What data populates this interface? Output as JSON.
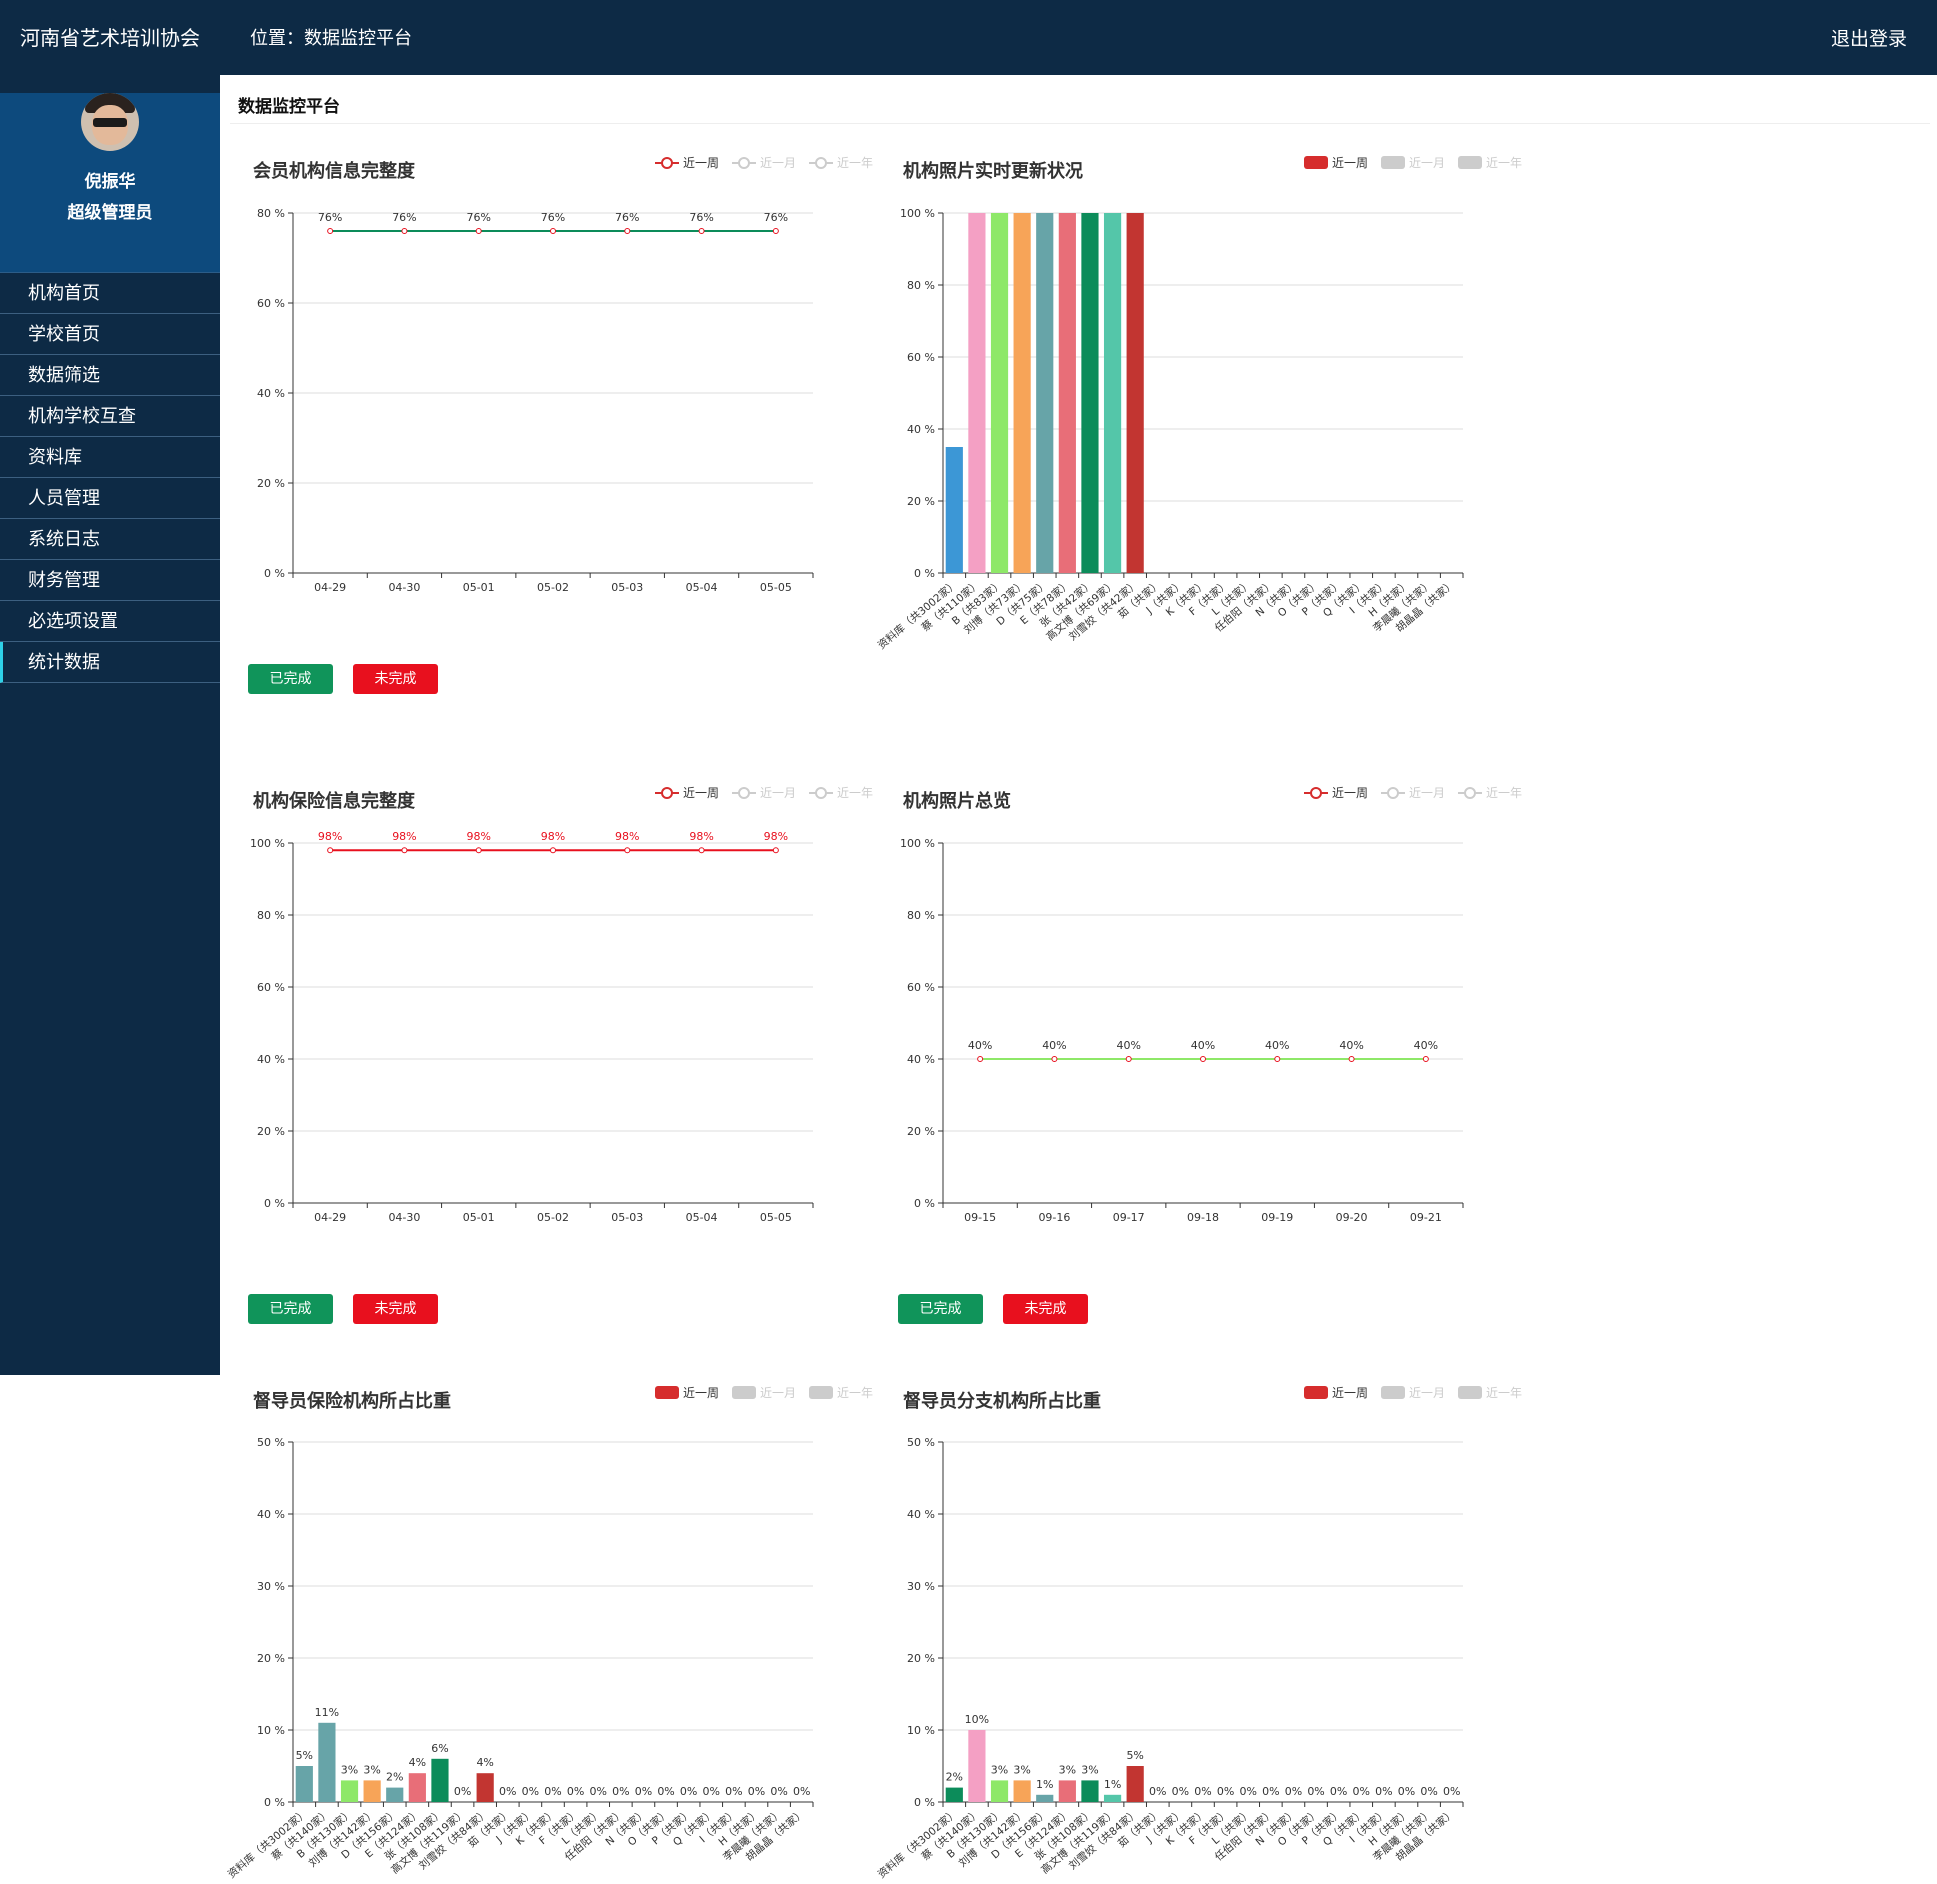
{
  "header": {
    "org_name": "河南省艺术培训协会",
    "location": "位置：数据监控平台",
    "logout": "退出登录"
  },
  "user": {
    "name": "倪振华",
    "role": "超级管理员"
  },
  "sidebar": {
    "items": [
      {
        "label": "机构首页"
      },
      {
        "label": "学校首页"
      },
      {
        "label": "数据筛选"
      },
      {
        "label": "机构学校互查"
      },
      {
        "label": "资料库"
      },
      {
        "label": "人员管理"
      },
      {
        "label": "系统日志"
      },
      {
        "label": "财务管理"
      },
      {
        "label": "必选项设置"
      },
      {
        "label": "统计数据"
      }
    ],
    "active_index": 9
  },
  "page": {
    "title": "数据监控平台"
  },
  "legend": {
    "labels": [
      "近一周",
      "近一月",
      "近一年"
    ],
    "active_color": "#d62d2d",
    "inactive_color": "#cccccc"
  },
  "buttons": {
    "done": "已完成",
    "undone": "未完成"
  },
  "colors": {
    "done": "#10945a",
    "undone": "#e8101e"
  },
  "palette": [
    "#3c97d6",
    "#f4a0c4",
    "#8ee868",
    "#f7a458",
    "#67a4a8",
    "#e86e78",
    "#0c8c5a",
    "#54c6a9",
    "#c23531"
  ],
  "chart_data": [
    {
      "id": "member-info",
      "type": "line",
      "title": "会员机构信息完整度",
      "legend_style": "line",
      "categories": [
        "04-29",
        "04-30",
        "05-01",
        "05-02",
        "05-03",
        "05-04",
        "05-05"
      ],
      "values": [
        76,
        76,
        76,
        76,
        76,
        76,
        76
      ],
      "value_labels": [
        "76%",
        "76%",
        "76%",
        "76%",
        "76%",
        "76%",
        "76%"
      ],
      "yticks": [
        "0 %",
        "20 %",
        "40 %",
        "60 %",
        "80 %"
      ],
      "ylim": [
        0,
        80
      ],
      "line_color": "#0c8c5a",
      "label_color": "#333333"
    },
    {
      "id": "photo-update",
      "type": "bar",
      "title": "机构照片实时更新状况",
      "legend_style": "rect",
      "categories": [
        "资料库（共3002家）",
        "蔡（共110家）",
        "B（共83家）",
        "刘博（共73家）",
        "D（共75家）",
        "E（共78家）",
        "张（共42家）",
        "高文博（共69家）",
        "刘雪姣（共42家）",
        "茹（共家）",
        "J（共家）",
        "K（共家）",
        "F（共家）",
        "L（共家）",
        "任伯阳（共家）",
        "N（共家）",
        "O（共家）",
        "P（共家）",
        "Q（共家）",
        "I（共家）",
        "H（共家）",
        "李晨曦（共家）",
        "胡晶晶（共家）"
      ],
      "values": [
        35,
        100,
        100,
        100,
        100,
        100,
        100,
        100,
        100,
        0,
        0,
        0,
        0,
        0,
        0,
        0,
        0,
        0,
        0,
        0,
        0,
        0,
        0
      ],
      "yticks": [
        "0 %",
        "20 %",
        "40 %",
        "60 %",
        "80 %",
        "100 %"
      ],
      "ylim": [
        0,
        100
      ]
    },
    {
      "id": "insurance-info",
      "type": "line",
      "title": "机构保险信息完整度",
      "legend_style": "line",
      "categories": [
        "04-29",
        "04-30",
        "05-01",
        "05-02",
        "05-03",
        "05-04",
        "05-05"
      ],
      "values": [
        98,
        98,
        98,
        98,
        98,
        98,
        98
      ],
      "value_labels": [
        "98%",
        "98%",
        "98%",
        "98%",
        "98%",
        "98%",
        "98%"
      ],
      "yticks": [
        "0 %",
        "20 %",
        "40 %",
        "60 %",
        "80 %",
        "100 %"
      ],
      "ylim": [
        0,
        100
      ],
      "line_color": "#e8101e",
      "label_color": "#e8101e"
    },
    {
      "id": "photo-overview",
      "type": "line",
      "title": "机构照片总览",
      "legend_style": "line",
      "categories": [
        "09-15",
        "09-16",
        "09-17",
        "09-18",
        "09-19",
        "09-20",
        "09-21"
      ],
      "values": [
        40,
        40,
        40,
        40,
        40,
        40,
        40
      ],
      "value_labels": [
        "40%",
        "40%",
        "40%",
        "40%",
        "40%",
        "40%",
        "40%"
      ],
      "yticks": [
        "0 %",
        "20 %",
        "40 %",
        "60 %",
        "80 %",
        "100 %"
      ],
      "ylim": [
        0,
        100
      ],
      "line_color": "#8ee868",
      "label_color": "#333333"
    },
    {
      "id": "supervisor-insurance",
      "type": "bar",
      "title": "督导员保险机构所占比重",
      "legend_style": "rect",
      "categories": [
        "资料库（共3002家）",
        "蔡（共140家）",
        "B（共130家）",
        "刘博（共142家）",
        "D（共156家）",
        "E（共124家）",
        "张（共108家）",
        "高文博（共119家）",
        "刘雪姣（共84家）",
        "茹（共家）",
        "J（共家）",
        "K（共家）",
        "F（共家）",
        "L（共家）",
        "任伯阳（共家）",
        "N（共家）",
        "O（共家）",
        "P（共家）",
        "Q（共家）",
        "I（共家）",
        "H（共家）",
        "李晨曦（共家）",
        "胡晶晶（共家）"
      ],
      "values": [
        5,
        11,
        3,
        3,
        2,
        4,
        6,
        0,
        4,
        0,
        0,
        0,
        0,
        0,
        0,
        0,
        0,
        0,
        0,
        0,
        0,
        0,
        0
      ],
      "value_labels": [
        "5%",
        "11%",
        "3%",
        "3%",
        "2%",
        "4%",
        "6%",
        "0%",
        "4%",
        "0%",
        "0%",
        "0%",
        "0%",
        "0%",
        "0%",
        "0%",
        "0%",
        "0%",
        "0%",
        "0%",
        "0%",
        "0%",
        "0%"
      ],
      "bar_colors": [
        "#67a4a8",
        "#67a4a8",
        "#8ee868",
        "#f7a458",
        "#67a4a8",
        "#e86e78",
        "#0c8c5a",
        "#54c6a9",
        "#c23531"
      ],
      "yticks": [
        "0 %",
        "10 %",
        "20 %",
        "30 %",
        "40 %",
        "50 %"
      ],
      "ylim": [
        0,
        50
      ]
    },
    {
      "id": "supervisor-branch",
      "type": "bar",
      "title": "督导员分支机构所占比重",
      "legend_style": "rect",
      "categories": [
        "资料库（共3002家）",
        "蔡（共140家）",
        "B（共130家）",
        "刘博（共142家）",
        "D（共156家）",
        "E（共124家）",
        "张（共108家）",
        "高文博（共119家）",
        "刘雪姣（共84家）",
        "茹（共家）",
        "J（共家）",
        "K（共家）",
        "F（共家）",
        "L（共家）",
        "任伯阳（共家）",
        "N（共家）",
        "O（共家）",
        "P（共家）",
        "Q（共家）",
        "I（共家）",
        "H（共家）",
        "李晨曦（共家）",
        "胡晶晶（共家）"
      ],
      "values": [
        2,
        10,
        3,
        3,
        1,
        3,
        3,
        1,
        5,
        0,
        0,
        0,
        0,
        0,
        0,
        0,
        0,
        0,
        0,
        0,
        0,
        0,
        0
      ],
      "value_labels": [
        "2%",
        "10%",
        "3%",
        "3%",
        "1%",
        "3%",
        "3%",
        "1%",
        "5%",
        "0%",
        "0%",
        "0%",
        "0%",
        "0%",
        "0%",
        "0%",
        "0%",
        "0%",
        "0%",
        "0%",
        "0%",
        "0%",
        "0%"
      ],
      "bar_colors": [
        "#0c8c5a",
        "#f4a0c4",
        "#8ee868",
        "#f7a458",
        "#67a4a8",
        "#e86e78",
        "#0c8c5a",
        "#54c6a9",
        "#c23531"
      ],
      "yticks": [
        "0 %",
        "10 %",
        "20 %",
        "30 %",
        "40 %",
        "50 %"
      ],
      "ylim": [
        0,
        50
      ]
    }
  ]
}
